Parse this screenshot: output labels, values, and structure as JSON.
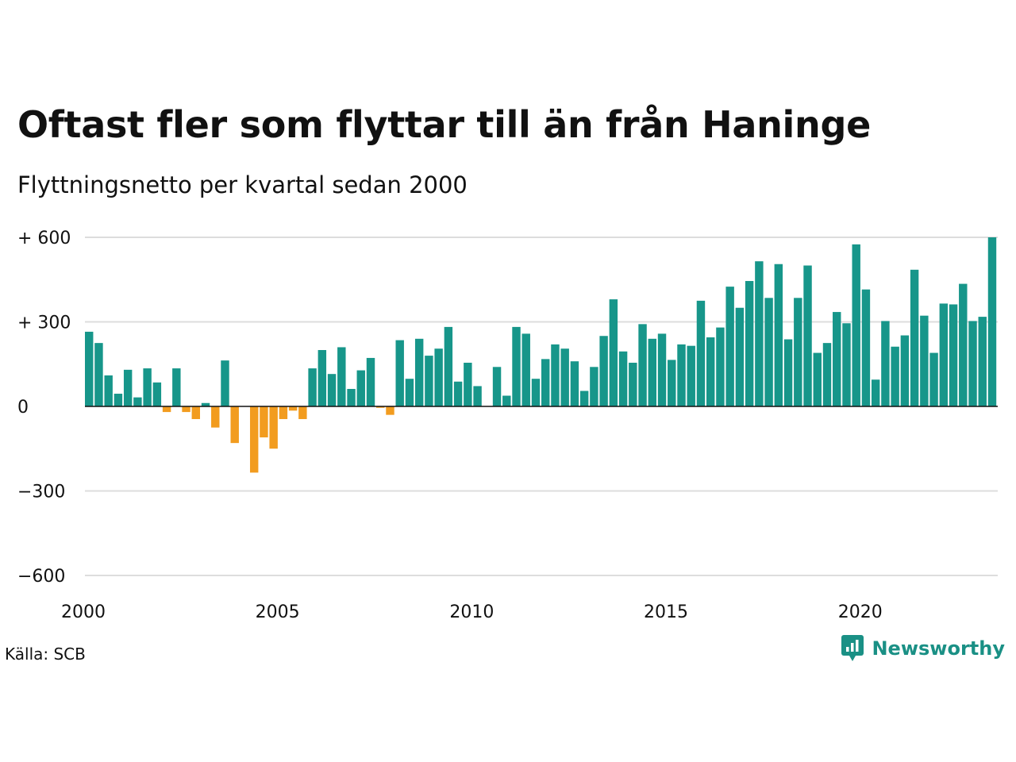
{
  "header": {
    "title": "Oftast fler som flyttar till än från Haninge",
    "subtitle": "Flyttningsnetto per kvartal sedan 2000"
  },
  "footer": {
    "source": "Källa: SCB",
    "brand": "Newsworthy"
  },
  "colors": {
    "positive": "#17968a",
    "negative": "#f29c1f",
    "grid": "#dddddd",
    "axis": "#111111"
  },
  "chart_data": {
    "type": "bar",
    "xlabel": "",
    "ylabel": "",
    "ylim": [
      -600,
      600
    ],
    "yticks": [
      600,
      300,
      0,
      -300,
      -600
    ],
    "ytick_labels": [
      "+ 600",
      "+ 300",
      "0",
      "−300",
      "−600"
    ],
    "xticks": [
      2000,
      2005,
      2010,
      2015,
      2020
    ],
    "xtick_labels": [
      "2000",
      "2005",
      "2010",
      "2015",
      "2020"
    ],
    "grid": true,
    "legend": "none",
    "series": [
      {
        "start": "2000 Q1",
        "values": [
          265,
          225,
          110,
          45,
          130,
          32,
          135,
          85,
          -20,
          135,
          -20,
          -45,
          12,
          -75,
          163,
          -130,
          0,
          -235,
          -110,
          -150,
          -45,
          -15,
          -45,
          135,
          200,
          115,
          210,
          62,
          128,
          172,
          -5,
          -30,
          235,
          98,
          240,
          180,
          205,
          282,
          88,
          155,
          72,
          0,
          140,
          38,
          282,
          258,
          98,
          168,
          220,
          205,
          160,
          55,
          140,
          250,
          380,
          195,
          155,
          292,
          240,
          258,
          165,
          220,
          215,
          375,
          245,
          280,
          425,
          350,
          445,
          515,
          385,
          505,
          238,
          385,
          500,
          190,
          225,
          335,
          295,
          575,
          415,
          95,
          303,
          212,
          252,
          485,
          322,
          190,
          365,
          362,
          435,
          303,
          318,
          600
        ]
      }
    ]
  }
}
